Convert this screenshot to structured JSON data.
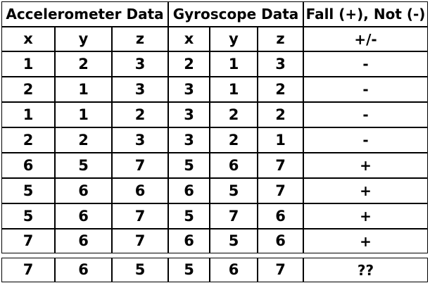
{
  "table": {
    "header_groups": [
      "Accelerometer Data",
      "Gyroscope Data",
      "Fall (+), Not (-)"
    ],
    "column_labels": [
      "x",
      "y",
      "z",
      "x",
      "y",
      "z",
      "+/-"
    ],
    "rows": [
      [
        "1",
        "2",
        "3",
        "2",
        "1",
        "3",
        "-"
      ],
      [
        "2",
        "1",
        "3",
        "3",
        "1",
        "2",
        "-"
      ],
      [
        "1",
        "1",
        "2",
        "3",
        "2",
        "2",
        "-"
      ],
      [
        "2",
        "2",
        "3",
        "3",
        "2",
        "1",
        "-"
      ],
      [
        "6",
        "5",
        "7",
        "5",
        "6",
        "7",
        "+"
      ],
      [
        "5",
        "6",
        "6",
        "6",
        "5",
        "7",
        "+"
      ],
      [
        "5",
        "6",
        "7",
        "5",
        "7",
        "6",
        "+"
      ],
      [
        "7",
        "6",
        "7",
        "6",
        "5",
        "6",
        "+"
      ]
    ],
    "query_row": [
      "7",
      "6",
      "5",
      "5",
      "6",
      "7",
      "??"
    ]
  }
}
